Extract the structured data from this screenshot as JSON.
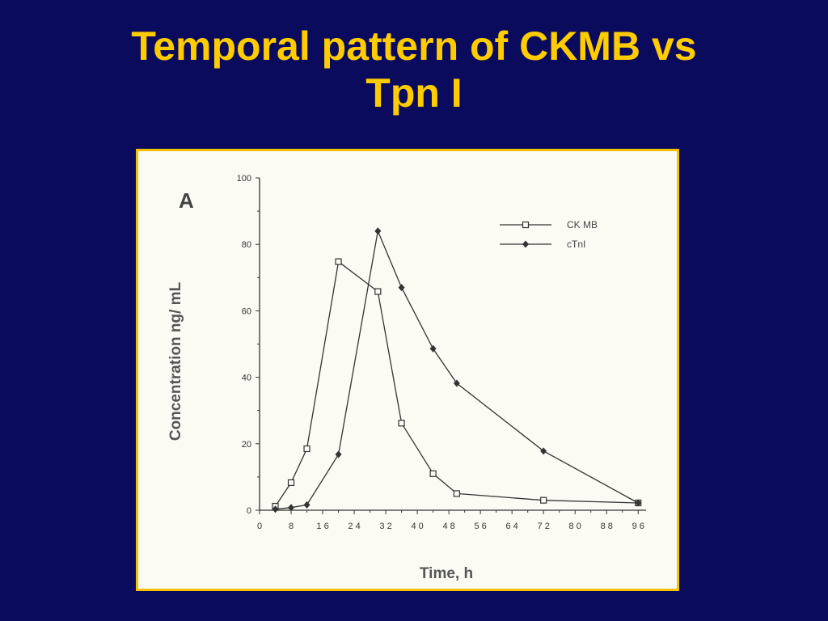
{
  "slide": {
    "title_line1": "Temporal pattern of CKMB vs",
    "title_line2": "Tpn I"
  },
  "colors": {
    "background": "#0b0b5e",
    "title": "#ffcc00",
    "frame_border": "#f2c200",
    "plot_background": "#fbfbf4",
    "ink": "#333333"
  },
  "chart_data": {
    "type": "line",
    "panel_label": "A",
    "xlabel": "Time,  h",
    "ylabel": "Concentration  ng/  mL",
    "xlim": [
      0,
      98
    ],
    "ylim": [
      0,
      100
    ],
    "xticks": [
      0,
      8,
      16,
      24,
      32,
      40,
      48,
      56,
      64,
      72,
      80,
      88,
      96
    ],
    "xtick_labels": [
      "0",
      "8",
      "1 6",
      "2 4",
      "3 2",
      "4 0",
      "4 8",
      "5 6",
      "6 4",
      "7 2",
      "8 0",
      "8 8",
      "9 6"
    ],
    "yticks": [
      0,
      20,
      40,
      60,
      80,
      100
    ],
    "ytick_labels": [
      "0",
      "20",
      "40",
      "60",
      "80",
      "100"
    ],
    "grid": false,
    "legend_position": "top-right",
    "series": [
      {
        "name": "CK MB",
        "marker": "open-square",
        "x": [
          4,
          8,
          12,
          20,
          30,
          36,
          44,
          50,
          72,
          96
        ],
        "y": [
          1.2,
          8.3,
          18.5,
          74.8,
          65.8,
          26.2,
          11,
          5,
          3,
          2.2
        ]
      },
      {
        "name": "cTnI",
        "marker": "filled-diamond",
        "x": [
          4,
          8,
          12,
          20,
          30,
          36,
          44,
          50,
          72,
          96
        ],
        "y": [
          0.3,
          0.8,
          1.6,
          16.8,
          84,
          67,
          48.6,
          38.2,
          17.8,
          2.2
        ]
      }
    ]
  }
}
